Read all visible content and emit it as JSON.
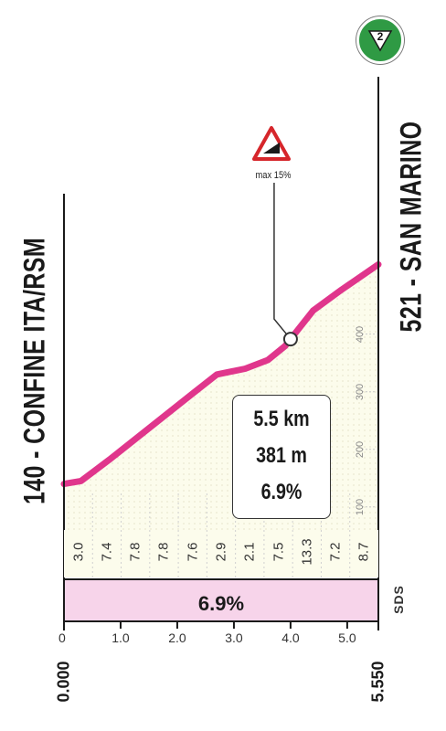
{
  "chart_data": {
    "type": "area",
    "start_label": "140 - CONFINE ITA/RSM",
    "end_label": "521 - SAN MARINO",
    "km_range": [
      0,
      5.55
    ],
    "x_ticks": [
      "0",
      "1.0",
      "2.0",
      "3.0",
      "4.0",
      "5.0"
    ],
    "x_start_label": "0.000",
    "x_end_label": "5.550",
    "y_ticks": [
      "100",
      "200",
      "300",
      "400"
    ],
    "y_range": [
      60,
      520
    ],
    "profile": [
      {
        "km": 0.0,
        "alt": 140
      },
      {
        "km": 0.3,
        "alt": 145
      },
      {
        "km": 0.8,
        "alt": 182
      },
      {
        "km": 1.3,
        "alt": 221
      },
      {
        "km": 1.8,
        "alt": 260
      },
      {
        "km": 2.3,
        "alt": 299
      },
      {
        "km": 2.7,
        "alt": 330
      },
      {
        "km": 3.2,
        "alt": 340
      },
      {
        "km": 3.6,
        "alt": 355
      },
      {
        "km": 3.9,
        "alt": 379
      },
      {
        "km": 4.4,
        "alt": 441
      },
      {
        "km": 4.9,
        "alt": 477
      },
      {
        "km": 5.55,
        "alt": 521
      }
    ],
    "gradients": [
      "3.0",
      "7.4",
      "7.8",
      "7.8",
      "7.6",
      "2.9",
      "2.1",
      "7.5",
      "13.3",
      "7.2",
      "8.7"
    ],
    "average_gradient": "6.9%",
    "info": {
      "distance": "5.5 km",
      "gain": "381 m",
      "gradient": "6.9%"
    },
    "max_label": "max 15%",
    "max_km": 4.0,
    "sds_label": "SDS",
    "finish_badge": "2",
    "colors": {
      "line": "#e0368c",
      "area": "#fcfcec",
      "avg_band": "#f7d4ea"
    }
  }
}
